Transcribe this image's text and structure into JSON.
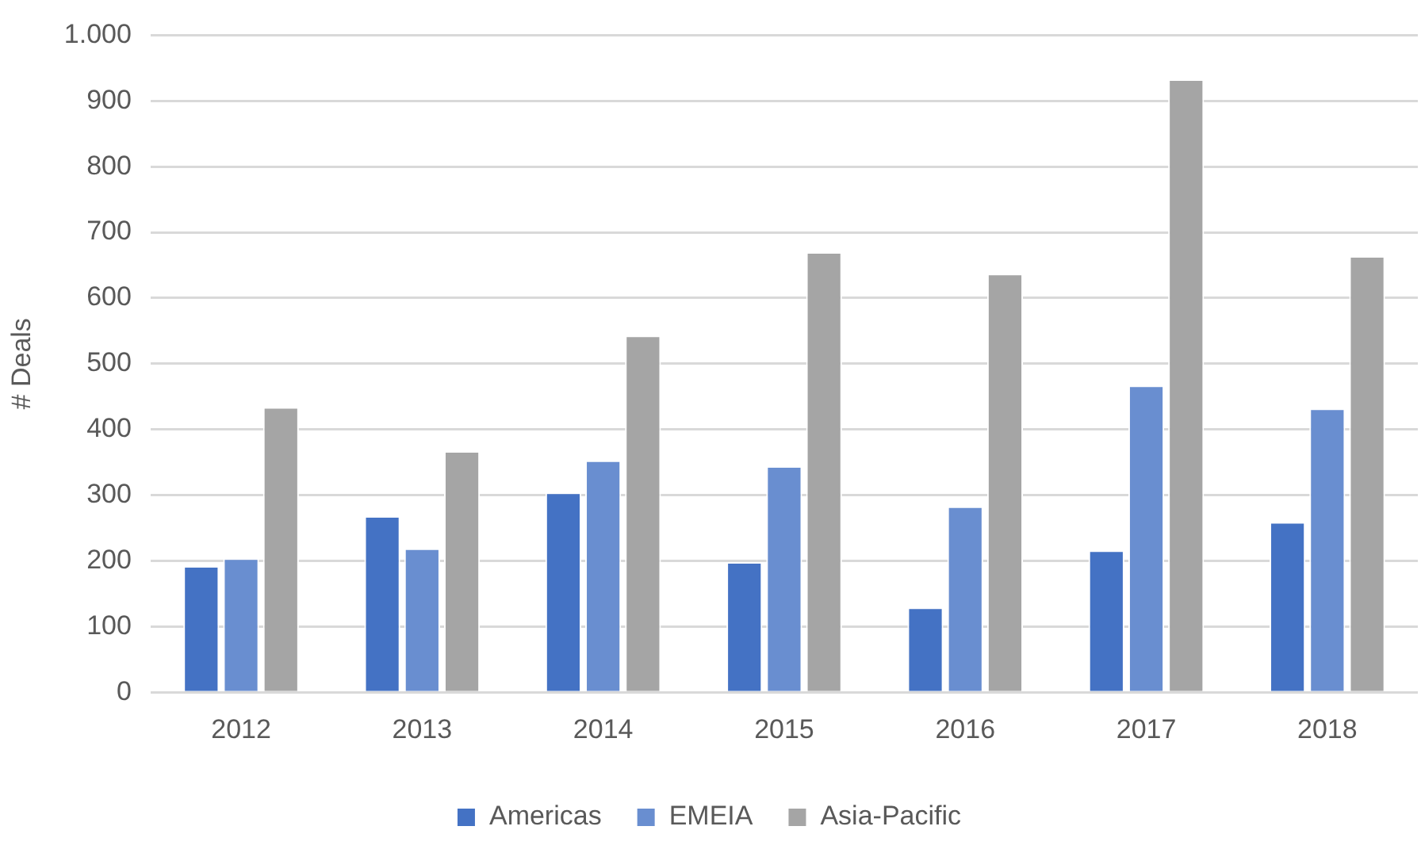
{
  "chart_data": {
    "type": "bar",
    "ylabel": "# Deals",
    "categories": [
      "2012",
      "2013",
      "2014",
      "2015",
      "2016",
      "2017",
      "2018"
    ],
    "series": [
      {
        "name": "Americas",
        "color": "#4472c4",
        "values": [
          192,
          268,
          304,
          198,
          129,
          216,
          259
        ]
      },
      {
        "name": "EMEIA",
        "color": "#698ed0",
        "values": [
          204,
          219,
          353,
          344,
          283,
          467,
          432
        ]
      },
      {
        "name": "Asia-Pacific",
        "color": "#a5a5a5",
        "values": [
          434,
          367,
          543,
          670,
          637,
          933,
          664
        ]
      }
    ],
    "ylim": [
      0,
      1000
    ],
    "yticks": [
      0,
      100,
      200,
      300,
      400,
      500,
      600,
      700,
      800,
      900,
      {
        "value": 1000,
        "label": "1.000"
      }
    ],
    "grid": "y",
    "legend": "bottom"
  }
}
